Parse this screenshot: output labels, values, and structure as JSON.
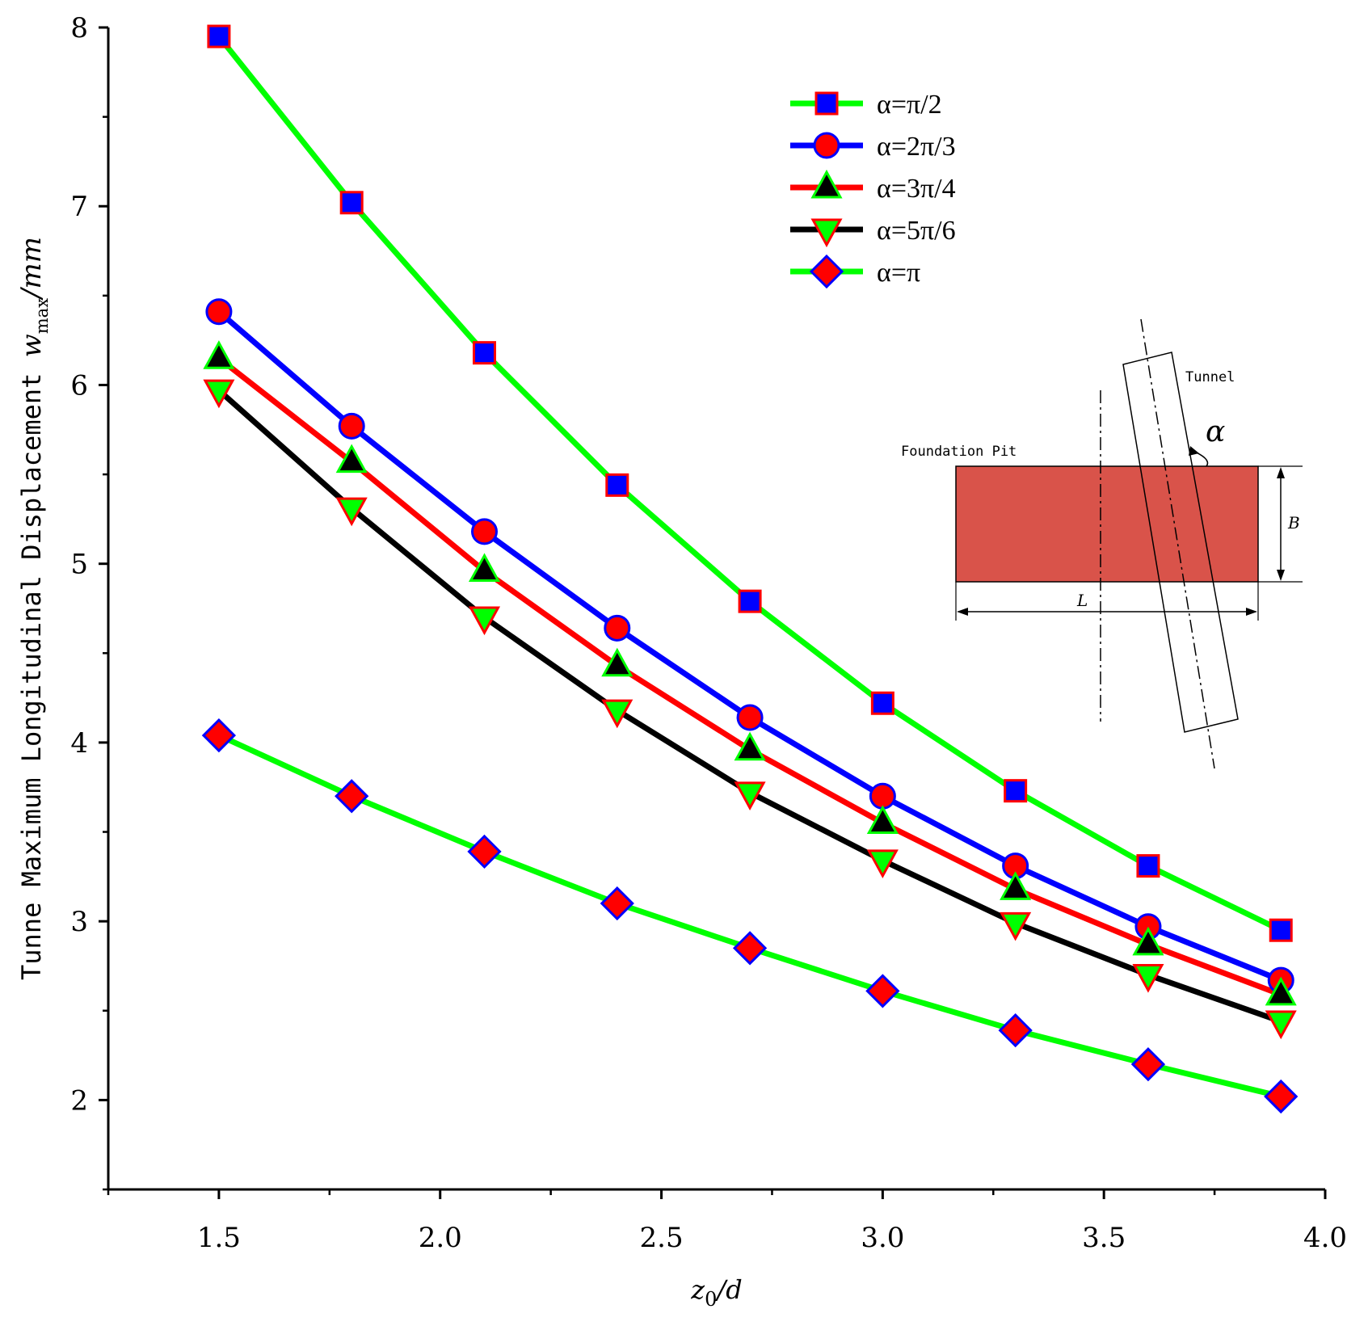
{
  "chart_data": {
    "type": "line",
    "xlabel": "z0/d",
    "ylabel": "Tunne Maximum Longitudinal Displacement wmax/mm",
    "x_axis": {
      "label_main": "z",
      "label_sub": "0",
      "label_rest": "/d"
    },
    "y_axis": {
      "label_main": "Tunne Maximum Longitudinal Displacement ",
      "label_var": "w",
      "label_sub": "max",
      "label_rest": "/mm"
    },
    "xlim": [
      1.25,
      4.0
    ],
    "ylim": [
      1.5,
      8.0
    ],
    "x_ticks": [
      {
        "value": 1.5,
        "label": "1.5"
      },
      {
        "value": 2.0,
        "label": "2.0"
      },
      {
        "value": 2.5,
        "label": "2.5"
      },
      {
        "value": 3.0,
        "label": "3.0"
      },
      {
        "value": 3.5,
        "label": "3.5"
      },
      {
        "value": 4.0,
        "label": "4.0"
      }
    ],
    "y_ticks": [
      {
        "value": 2,
        "label": "2"
      },
      {
        "value": 3,
        "label": "3"
      },
      {
        "value": 4,
        "label": "4"
      },
      {
        "value": 5,
        "label": "5"
      },
      {
        "value": 6,
        "label": "6"
      },
      {
        "value": 7,
        "label": "7"
      },
      {
        "value": 8,
        "label": "8"
      }
    ],
    "grid": false,
    "legend_position": "top-right",
    "x": [
      1.5,
      1.8,
      2.1,
      2.4,
      2.7,
      3.0,
      3.3,
      3.6,
      3.9
    ],
    "series": [
      {
        "name": "α=π/2",
        "line_color": "#00ff00",
        "marker": "square",
        "marker_fill": "#0000ff",
        "marker_stroke": "#ff0000",
        "values": [
          7.95,
          7.02,
          6.18,
          5.44,
          4.79,
          4.22,
          3.73,
          3.31,
          2.95
        ]
      },
      {
        "name": "α=2π/3",
        "line_color": "#0000ff",
        "marker": "circle",
        "marker_fill": "#ff0000",
        "marker_stroke": "#0000ff",
        "values": [
          6.41,
          5.77,
          5.18,
          4.64,
          4.14,
          3.7,
          3.31,
          2.97,
          2.67
        ]
      },
      {
        "name": "α=3π/4",
        "line_color": "#ff0000",
        "marker": "triangle-up",
        "marker_fill": "#000000",
        "marker_stroke": "#00ff00",
        "values": [
          6.15,
          5.57,
          4.96,
          4.43,
          3.96,
          3.55,
          3.18,
          2.87,
          2.59
        ]
      },
      {
        "name": "α=5π/6",
        "line_color": "#000000",
        "marker": "triangle-down",
        "marker_fill": "#00ff00",
        "marker_stroke": "#ff0000",
        "values": [
          5.97,
          5.31,
          4.7,
          4.18,
          3.72,
          3.34,
          2.99,
          2.7,
          2.44
        ]
      },
      {
        "name": "α=π",
        "line_color": "#00ff00",
        "marker": "diamond",
        "marker_fill": "#ff0000",
        "marker_stroke": "#0000ff",
        "values": [
          4.04,
          3.7,
          3.39,
          3.1,
          2.85,
          2.61,
          2.39,
          2.2,
          2.02
        ]
      }
    ]
  },
  "inset": {
    "tunnel_label": "Tunnel",
    "pit_label": "Foundation Pit",
    "alpha_label": "α",
    "b_label": "B",
    "l_label": "L",
    "pit_color": "#d9534a"
  }
}
